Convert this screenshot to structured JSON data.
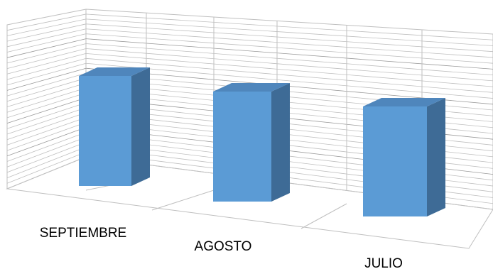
{
  "chart_data": {
    "type": "bar",
    "style": "3d-column",
    "categories": [
      "SEPTIEMBRE",
      "AGOSTO",
      "JULIO"
    ],
    "values": [
      100,
      100,
      100
    ],
    "title": "",
    "xlabel": "",
    "ylabel": "",
    "grid": true,
    "legend": "none",
    "colors": {
      "bar_front": "#5B9BD5",
      "bar_side": "#3E6B96",
      "bar_top": "#4F86BC",
      "gridline": "#BFBFBF"
    }
  }
}
